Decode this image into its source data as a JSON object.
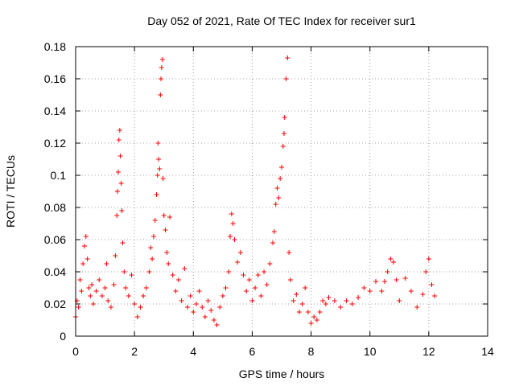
{
  "chart_data": {
    "type": "scatter",
    "title": "Day 052 of 2021, Rate Of TEC Index for receiver sur1",
    "xlabel": "GPS time / hours",
    "ylabel": "ROTI / TECUs",
    "xlim": [
      0,
      14
    ],
    "ylim": [
      0,
      0.18
    ],
    "x_ticks": [
      0,
      2,
      4,
      6,
      8,
      10,
      12,
      14
    ],
    "y_ticks": [
      0,
      0.02,
      0.04,
      0.06,
      0.08,
      0.1,
      0.12,
      0.14,
      0.16,
      0.18
    ],
    "x_tick_labels": [
      "0",
      "2",
      "4",
      "6",
      "8",
      "10",
      "12",
      "14"
    ],
    "y_tick_labels": [
      "0",
      "0.02",
      "0.04",
      "0.06",
      "0.08",
      "0.1",
      "0.12",
      "0.14",
      "0.16",
      "0.18"
    ],
    "grid": true,
    "marker": "+",
    "marker_color": "#ff0000",
    "series": [
      {
        "name": "sur1",
        "points": [
          [
            0.0,
            0.012
          ],
          [
            0.05,
            0.022
          ],
          [
            0.1,
            0.018
          ],
          [
            0.15,
            0.035
          ],
          [
            0.2,
            0.028
          ],
          [
            0.25,
            0.045
          ],
          [
            0.3,
            0.056
          ],
          [
            0.35,
            0.062
          ],
          [
            0.4,
            0.048
          ],
          [
            0.45,
            0.03
          ],
          [
            0.5,
            0.025
          ],
          [
            0.55,
            0.032
          ],
          [
            0.6,
            0.02
          ],
          [
            0.7,
            0.028
          ],
          [
            0.8,
            0.035
          ],
          [
            0.9,
            0.025
          ],
          [
            1.0,
            0.03
          ],
          [
            1.05,
            0.045
          ],
          [
            1.1,
            0.022
          ],
          [
            1.2,
            0.018
          ],
          [
            1.3,
            0.032
          ],
          [
            1.35,
            0.05
          ],
          [
            1.4,
            0.075
          ],
          [
            1.42,
            0.09
          ],
          [
            1.45,
            0.102
          ],
          [
            1.47,
            0.122
          ],
          [
            1.5,
            0.128
          ],
          [
            1.52,
            0.112
          ],
          [
            1.55,
            0.095
          ],
          [
            1.57,
            0.078
          ],
          [
            1.6,
            0.058
          ],
          [
            1.65,
            0.04
          ],
          [
            1.7,
            0.03
          ],
          [
            1.8,
            0.025
          ],
          [
            1.9,
            0.038
          ],
          [
            2.0,
            0.02
          ],
          [
            2.1,
            0.012
          ],
          [
            2.2,
            0.018
          ],
          [
            2.3,
            0.025
          ],
          [
            2.4,
            0.03
          ],
          [
            2.5,
            0.04
          ],
          [
            2.55,
            0.055
          ],
          [
            2.6,
            0.048
          ],
          [
            2.65,
            0.062
          ],
          [
            2.7,
            0.072
          ],
          [
            2.75,
            0.088
          ],
          [
            2.78,
            0.1
          ],
          [
            2.8,
            0.12
          ],
          [
            2.82,
            0.11
          ],
          [
            2.85,
            0.104
          ],
          [
            2.88,
            0.15
          ],
          [
            2.9,
            0.16
          ],
          [
            2.92,
            0.167
          ],
          [
            2.95,
            0.172
          ],
          [
            2.97,
            0.098
          ],
          [
            3.0,
            0.075
          ],
          [
            3.05,
            0.066
          ],
          [
            3.1,
            0.052
          ],
          [
            3.15,
            0.045
          ],
          [
            3.2,
            0.074
          ],
          [
            3.3,
            0.038
          ],
          [
            3.4,
            0.028
          ],
          [
            3.5,
            0.035
          ],
          [
            3.6,
            0.022
          ],
          [
            3.7,
            0.042
          ],
          [
            3.8,
            0.018
          ],
          [
            3.9,
            0.025
          ],
          [
            4.0,
            0.015
          ],
          [
            4.1,
            0.02
          ],
          [
            4.2,
            0.028
          ],
          [
            4.3,
            0.018
          ],
          [
            4.4,
            0.012
          ],
          [
            4.5,
            0.022
          ],
          [
            4.6,
            0.016
          ],
          [
            4.7,
            0.01
          ],
          [
            4.8,
            0.007
          ],
          [
            4.9,
            0.018
          ],
          [
            5.0,
            0.025
          ],
          [
            5.1,
            0.03
          ],
          [
            5.2,
            0.04
          ],
          [
            5.25,
            0.062
          ],
          [
            5.3,
            0.076
          ],
          [
            5.35,
            0.07
          ],
          [
            5.4,
            0.06
          ],
          [
            5.5,
            0.046
          ],
          [
            5.6,
            0.052
          ],
          [
            5.7,
            0.038
          ],
          [
            5.8,
            0.028
          ],
          [
            5.9,
            0.035
          ],
          [
            6.0,
            0.022
          ],
          [
            6.1,
            0.03
          ],
          [
            6.2,
            0.038
          ],
          [
            6.3,
            0.025
          ],
          [
            6.4,
            0.04
          ],
          [
            6.5,
            0.032
          ],
          [
            6.6,
            0.045
          ],
          [
            6.7,
            0.058
          ],
          [
            6.75,
            0.065
          ],
          [
            6.8,
            0.082
          ],
          [
            6.85,
            0.092
          ],
          [
            6.9,
            0.086
          ],
          [
            6.95,
            0.098
          ],
          [
            7.0,
            0.105
          ],
          [
            7.05,
            0.118
          ],
          [
            7.08,
            0.126
          ],
          [
            7.1,
            0.136
          ],
          [
            7.15,
            0.16
          ],
          [
            7.2,
            0.173
          ],
          [
            7.25,
            0.052
          ],
          [
            7.3,
            0.035
          ],
          [
            7.4,
            0.022
          ],
          [
            7.5,
            0.026
          ],
          [
            7.6,
            0.015
          ],
          [
            7.7,
            0.02
          ],
          [
            7.8,
            0.03
          ],
          [
            7.9,
            0.015
          ],
          [
            8.0,
            0.008
          ],
          [
            8.1,
            0.012
          ],
          [
            8.2,
            0.01
          ],
          [
            8.3,
            0.015
          ],
          [
            8.4,
            0.022
          ],
          [
            8.5,
            0.02
          ],
          [
            8.6,
            0.024
          ],
          [
            8.8,
            0.022
          ],
          [
            9.0,
            0.018
          ],
          [
            9.2,
            0.022
          ],
          [
            9.4,
            0.02
          ],
          [
            9.6,
            0.024
          ],
          [
            9.8,
            0.03
          ],
          [
            10.0,
            0.028
          ],
          [
            10.2,
            0.034
          ],
          [
            10.4,
            0.028
          ],
          [
            10.5,
            0.034
          ],
          [
            10.6,
            0.04
          ],
          [
            10.7,
            0.048
          ],
          [
            10.8,
            0.046
          ],
          [
            10.9,
            0.035
          ],
          [
            11.0,
            0.022
          ],
          [
            11.2,
            0.036
          ],
          [
            11.4,
            0.028
          ],
          [
            11.6,
            0.018
          ],
          [
            11.8,
            0.026
          ],
          [
            11.9,
            0.04
          ],
          [
            12.0,
            0.048
          ],
          [
            12.1,
            0.032
          ],
          [
            12.2,
            0.025
          ]
        ]
      }
    ]
  }
}
